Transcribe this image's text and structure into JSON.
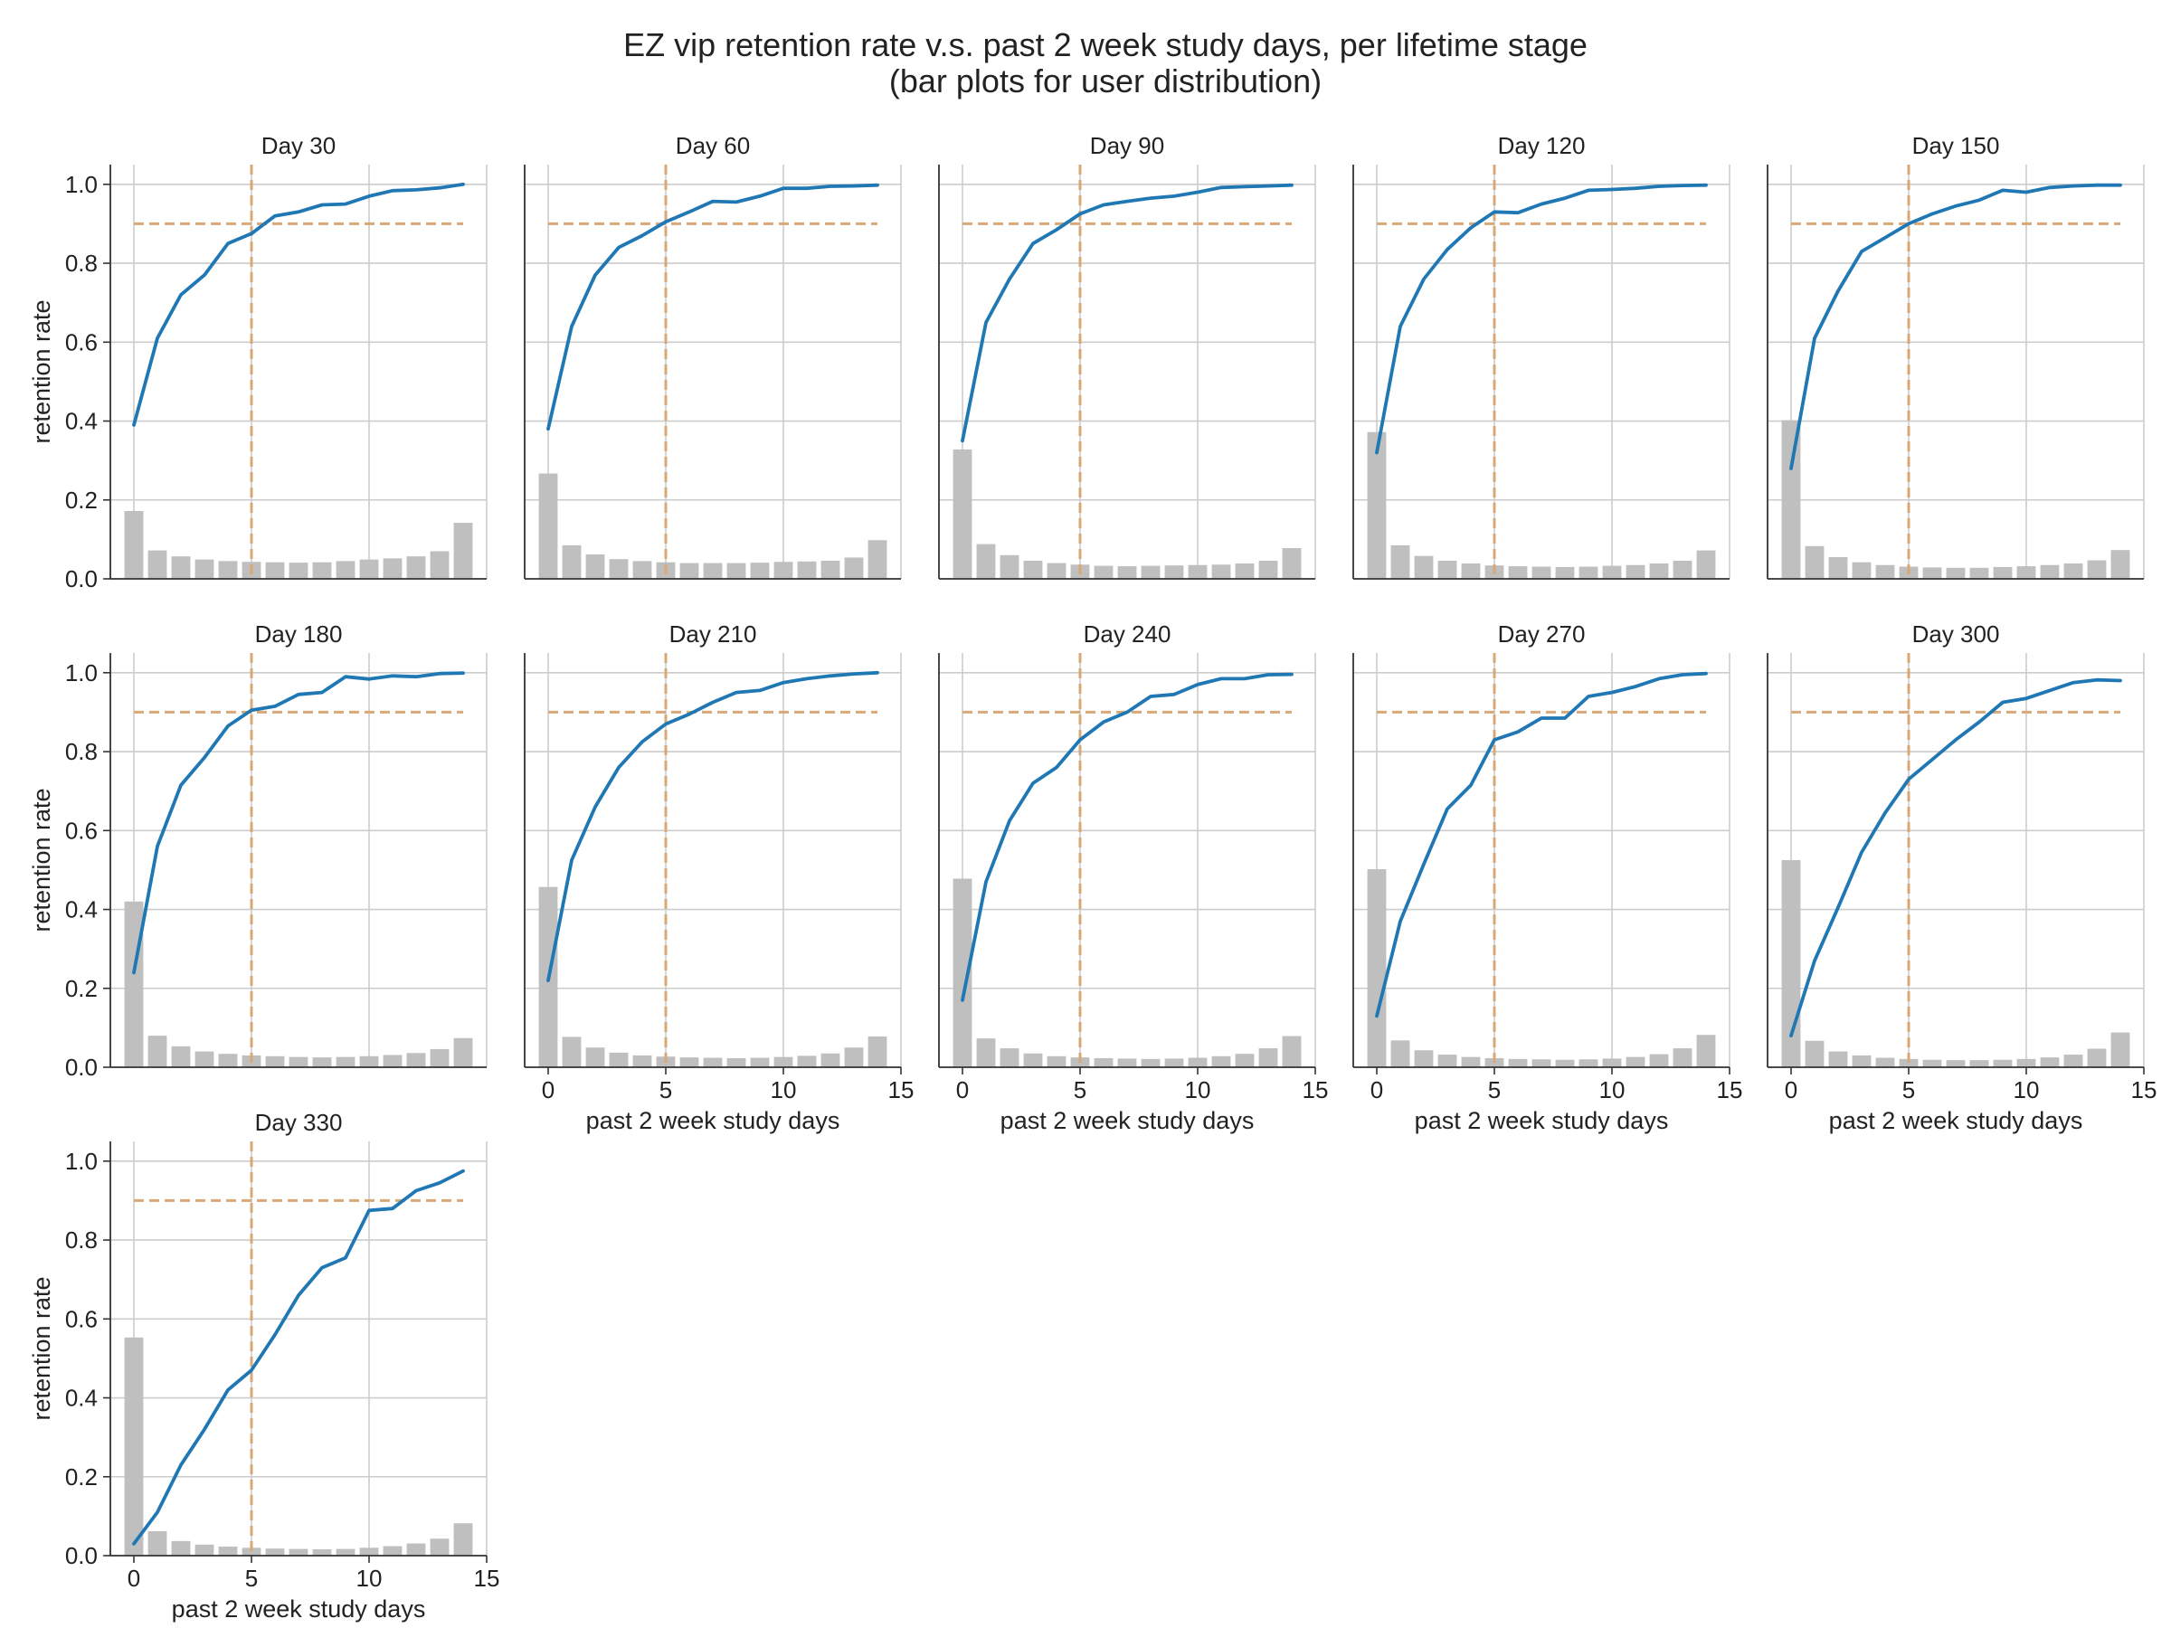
{
  "chart_data": {
    "type": "line",
    "title_line1": "EZ vip retention rate v.s. past 2 week study days, per lifetime stage",
    "title_line2": "(bar plots for user distribution)",
    "xlabel": "past 2 week study days",
    "ylabel": "retention rate",
    "xlim": [
      -1,
      15
    ],
    "ylim": [
      0,
      1.05
    ],
    "xticks": [
      0,
      5,
      10,
      15
    ],
    "yticks": [
      0.0,
      0.2,
      0.4,
      0.6,
      0.8,
      1.0
    ],
    "grid": true,
    "reference_lines": {
      "threshold_y": 0.9,
      "threshold_x": 5
    },
    "x": [
      0,
      1,
      2,
      3,
      4,
      5,
      6,
      7,
      8,
      9,
      10,
      11,
      12,
      13,
      14
    ],
    "colors": {
      "line": "#1f77b4",
      "bar": "#bfbfbf",
      "reference": "#d8a878",
      "grid": "#cccccc"
    },
    "panels": [
      {
        "title": "Day 30",
        "retention": [
          0.39,
          0.61,
          0.72,
          0.77,
          0.85,
          0.875,
          0.92,
          0.93,
          0.948,
          0.95,
          0.97,
          0.984,
          0.986,
          0.991,
          1.0
        ],
        "distribution": [
          0.172,
          0.072,
          0.057,
          0.049,
          0.045,
          0.043,
          0.042,
          0.041,
          0.042,
          0.045,
          0.049,
          0.052,
          0.057,
          0.07,
          0.142
        ]
      },
      {
        "title": "Day 60",
        "retention": [
          0.38,
          0.64,
          0.77,
          0.84,
          0.87,
          0.905,
          0.93,
          0.957,
          0.955,
          0.97,
          0.99,
          0.99,
          0.995,
          0.996,
          0.998
        ],
        "distribution": [
          0.267,
          0.085,
          0.062,
          0.05,
          0.045,
          0.042,
          0.04,
          0.04,
          0.04,
          0.041,
          0.043,
          0.044,
          0.046,
          0.054,
          0.098
        ]
      },
      {
        "title": "Day 90",
        "retention": [
          0.35,
          0.65,
          0.76,
          0.85,
          0.885,
          0.925,
          0.948,
          0.957,
          0.965,
          0.97,
          0.98,
          0.992,
          0.994,
          0.996,
          0.998
        ],
        "distribution": [
          0.328,
          0.088,
          0.06,
          0.046,
          0.04,
          0.036,
          0.033,
          0.032,
          0.033,
          0.034,
          0.035,
          0.036,
          0.039,
          0.046,
          0.078
        ]
      },
      {
        "title": "Day 120",
        "retention": [
          0.32,
          0.64,
          0.76,
          0.835,
          0.89,
          0.93,
          0.928,
          0.95,
          0.965,
          0.985,
          0.987,
          0.99,
          0.995,
          0.997,
          0.998
        ],
        "distribution": [
          0.372,
          0.085,
          0.058,
          0.046,
          0.039,
          0.034,
          0.032,
          0.031,
          0.03,
          0.031,
          0.033,
          0.035,
          0.039,
          0.046,
          0.072
        ]
      },
      {
        "title": "Day 150",
        "retention": [
          0.28,
          0.61,
          0.73,
          0.83,
          0.865,
          0.9,
          0.925,
          0.945,
          0.96,
          0.985,
          0.98,
          0.992,
          0.996,
          0.998,
          0.998
        ],
        "distribution": [
          0.402,
          0.083,
          0.055,
          0.042,
          0.035,
          0.031,
          0.029,
          0.028,
          0.028,
          0.03,
          0.032,
          0.035,
          0.039,
          0.047,
          0.073
        ]
      },
      {
        "title": "Day 180",
        "retention": [
          0.24,
          0.56,
          0.715,
          0.785,
          0.865,
          0.905,
          0.915,
          0.945,
          0.95,
          0.99,
          0.984,
          0.992,
          0.99,
          0.998,
          0.999
        ],
        "distribution": [
          0.42,
          0.08,
          0.053,
          0.04,
          0.034,
          0.03,
          0.028,
          0.026,
          0.025,
          0.026,
          0.028,
          0.031,
          0.036,
          0.046,
          0.074
        ]
      },
      {
        "title": "Day 210",
        "retention": [
          0.22,
          0.525,
          0.66,
          0.76,
          0.825,
          0.87,
          0.895,
          0.925,
          0.95,
          0.955,
          0.975,
          0.985,
          0.992,
          0.997,
          1.0
        ],
        "distribution": [
          0.457,
          0.077,
          0.05,
          0.037,
          0.03,
          0.027,
          0.025,
          0.024,
          0.023,
          0.024,
          0.026,
          0.029,
          0.035,
          0.05,
          0.078
        ]
      },
      {
        "title": "Day 240",
        "retention": [
          0.17,
          0.47,
          0.625,
          0.72,
          0.76,
          0.83,
          0.875,
          0.9,
          0.94,
          0.945,
          0.97,
          0.985,
          0.985,
          0.995,
          0.996
        ],
        "distribution": [
          0.478,
          0.073,
          0.048,
          0.035,
          0.028,
          0.025,
          0.023,
          0.022,
          0.021,
          0.022,
          0.024,
          0.028,
          0.034,
          0.048,
          0.079
        ]
      },
      {
        "title": "Day 270",
        "retention": [
          0.13,
          0.37,
          0.515,
          0.655,
          0.715,
          0.83,
          0.85,
          0.885,
          0.885,
          0.94,
          0.95,
          0.965,
          0.985,
          0.995,
          0.998
        ],
        "distribution": [
          0.502,
          0.068,
          0.043,
          0.032,
          0.026,
          0.023,
          0.021,
          0.02,
          0.019,
          0.02,
          0.022,
          0.026,
          0.033,
          0.048,
          0.082
        ]
      },
      {
        "title": "Day 300",
        "retention": [
          0.08,
          0.27,
          0.405,
          0.545,
          0.645,
          0.73,
          0.78,
          0.83,
          0.875,
          0.925,
          0.935,
          0.955,
          0.975,
          0.982,
          0.98
        ],
        "distribution": [
          0.525,
          0.067,
          0.04,
          0.03,
          0.024,
          0.021,
          0.019,
          0.018,
          0.018,
          0.019,
          0.021,
          0.025,
          0.032,
          0.047,
          0.088
        ]
      },
      {
        "title": "Day 330",
        "retention": [
          0.03,
          0.11,
          0.23,
          0.32,
          0.42,
          0.47,
          0.56,
          0.66,
          0.73,
          0.755,
          0.875,
          0.88,
          0.925,
          0.945,
          0.975
        ],
        "distribution": [
          0.553,
          0.062,
          0.037,
          0.028,
          0.023,
          0.02,
          0.018,
          0.017,
          0.016,
          0.017,
          0.02,
          0.024,
          0.031,
          0.043,
          0.082
        ]
      }
    ]
  }
}
